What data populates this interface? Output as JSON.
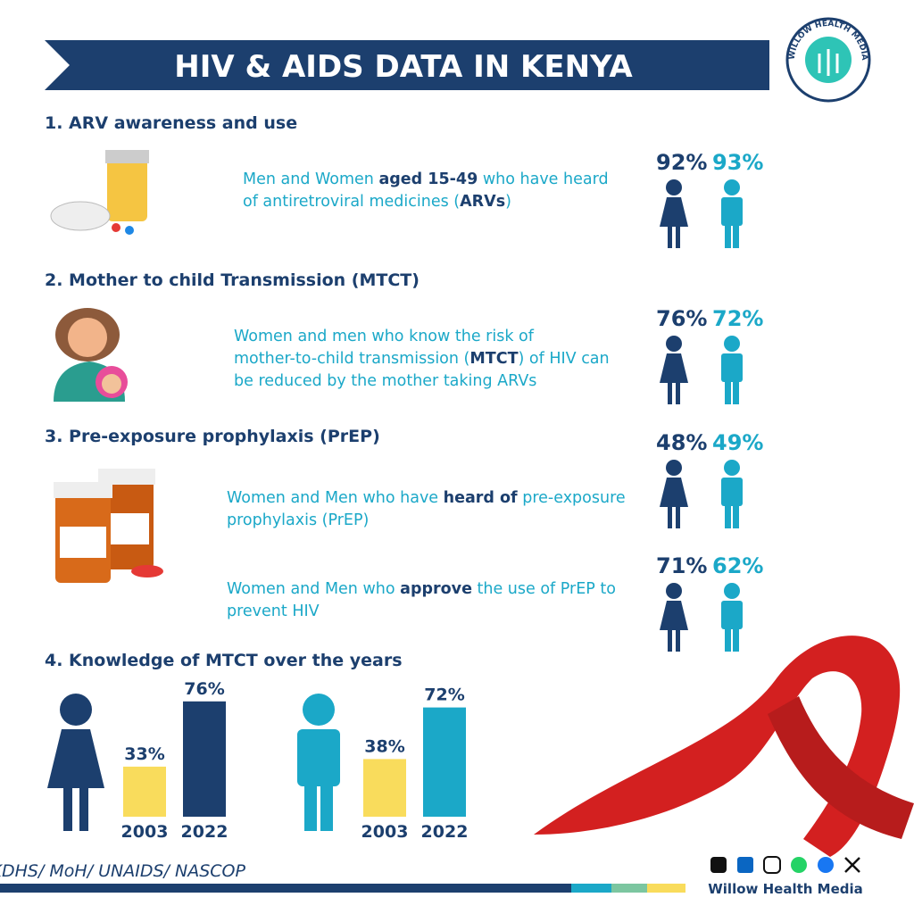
{
  "header": {
    "title": "HIV & AIDS DATA IN KENYA",
    "logo_text": "WILLOW HEALTH MEDIA"
  },
  "sections": [
    {
      "heading": "1. ARV awareness and use",
      "items": [
        {
          "description": [
            [
              {
                "text": "Men and Women ",
                "bold": false
              },
              {
                "text": "aged 15-49",
                "bold": true
              },
              {
                "text": " who have heard",
                "bold": false
              }
            ],
            [
              {
                "text": "of antiretroviral medicines (",
                "bold": false
              },
              {
                "text": "ARVs",
                "bold": true
              },
              {
                "text": ")",
                "bold": false
              }
            ]
          ],
          "women": "92%",
          "men": "93%"
        }
      ]
    },
    {
      "heading": "2. Mother to child Transmission (MTCT)",
      "items": [
        {
          "description": [
            [
              {
                "text": "Women and men who know the risk of",
                "bold": false
              }
            ],
            [
              {
                "text": "mother-to-child transmission (",
                "bold": false
              },
              {
                "text": "MTCT",
                "bold": true
              },
              {
                "text": ") of HIV can",
                "bold": false
              }
            ],
            [
              {
                "text": "be reduced by the mother taking ARVs",
                "bold": false
              }
            ]
          ],
          "women": "76%",
          "men": "72%"
        }
      ]
    },
    {
      "heading": "3. Pre-exposure prophylaxis (PrEP)",
      "items": [
        {
          "description": [
            [
              {
                "text": "Women and Men who have ",
                "bold": false
              },
              {
                "text": "heard of",
                "bold": true
              },
              {
                "text": " pre-exposure",
                "bold": false
              }
            ],
            [
              {
                "text": "prophylaxis (PrEP)",
                "bold": false
              }
            ]
          ],
          "women": "48%",
          "men": "49%"
        },
        {
          "description": [
            [
              {
                "text": "Women and Men who ",
                "bold": false
              },
              {
                "text": "approve",
                "bold": true
              },
              {
                "text": " the use of PrEP to",
                "bold": false
              }
            ],
            [
              {
                "text": "prevent HIV",
                "bold": false
              }
            ]
          ],
          "women": "71%",
          "men": "62%"
        }
      ]
    }
  ],
  "knowledge": {
    "heading": "4. Knowledge of MTCT over the years",
    "groups": [
      {
        "categories": [
          "2003",
          "2022"
        ],
        "values": [
          33,
          76
        ],
        "value_labels": [
          "33%",
          "76%"
        ],
        "colors": [
          "#f9dc5c",
          "#1c3f6e"
        ]
      },
      {
        "categories": [
          "2003",
          "2022"
        ],
        "values": [
          38,
          72
        ],
        "value_labels": [
          "38%",
          "72%"
        ],
        "colors": [
          "#f9dc5c",
          "#1ba8c8"
        ]
      }
    ]
  },
  "footer": {
    "sources": "Sources: WHO/KDHS/ MoH/ UNAIDS/ NASCOP",
    "brand": "Willow Health Media"
  }
}
